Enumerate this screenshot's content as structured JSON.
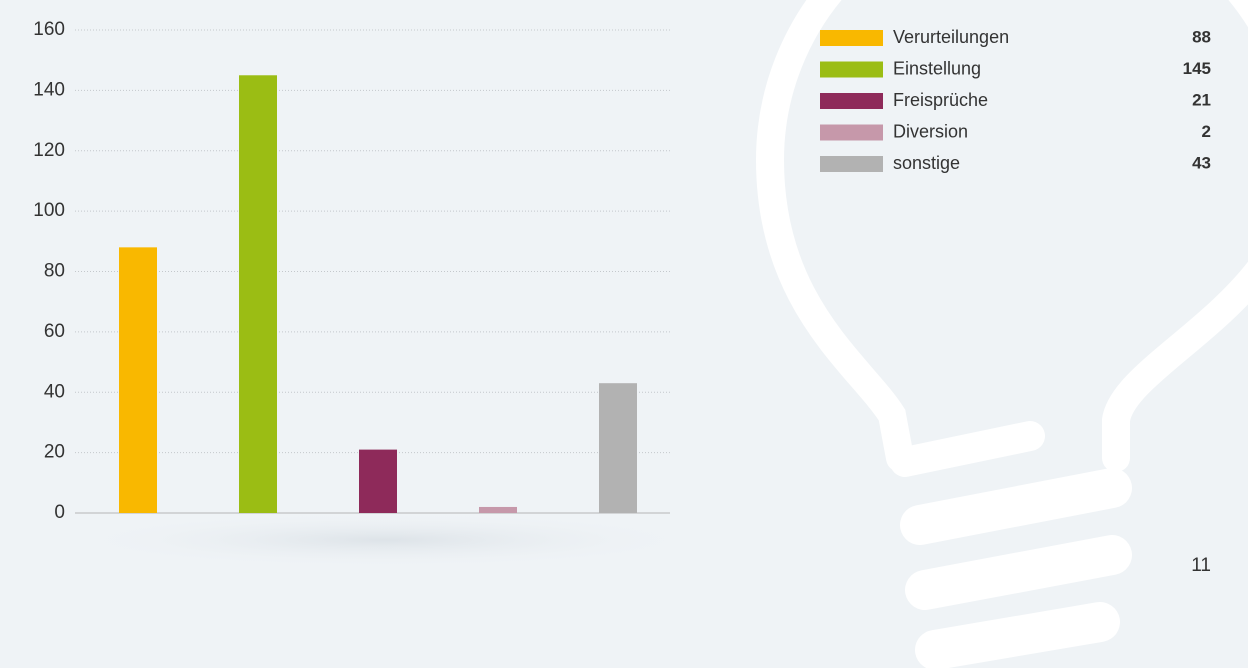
{
  "chart_data": {
    "type": "bar",
    "categories": [
      "Verurteilungen",
      "Einstellung",
      "Freisprüche",
      "Diversion",
      "sonstige"
    ],
    "values": [
      88,
      145,
      21,
      2,
      43
    ],
    "colors": [
      "#f9b800",
      "#9bbd14",
      "#8e2a5a",
      "#c698aa",
      "#b2b2b2"
    ],
    "ylim": [
      0,
      160
    ],
    "yticks": [
      0,
      20,
      40,
      60,
      80,
      100,
      120,
      140,
      160
    ],
    "grid": true
  },
  "page_number": 11
}
